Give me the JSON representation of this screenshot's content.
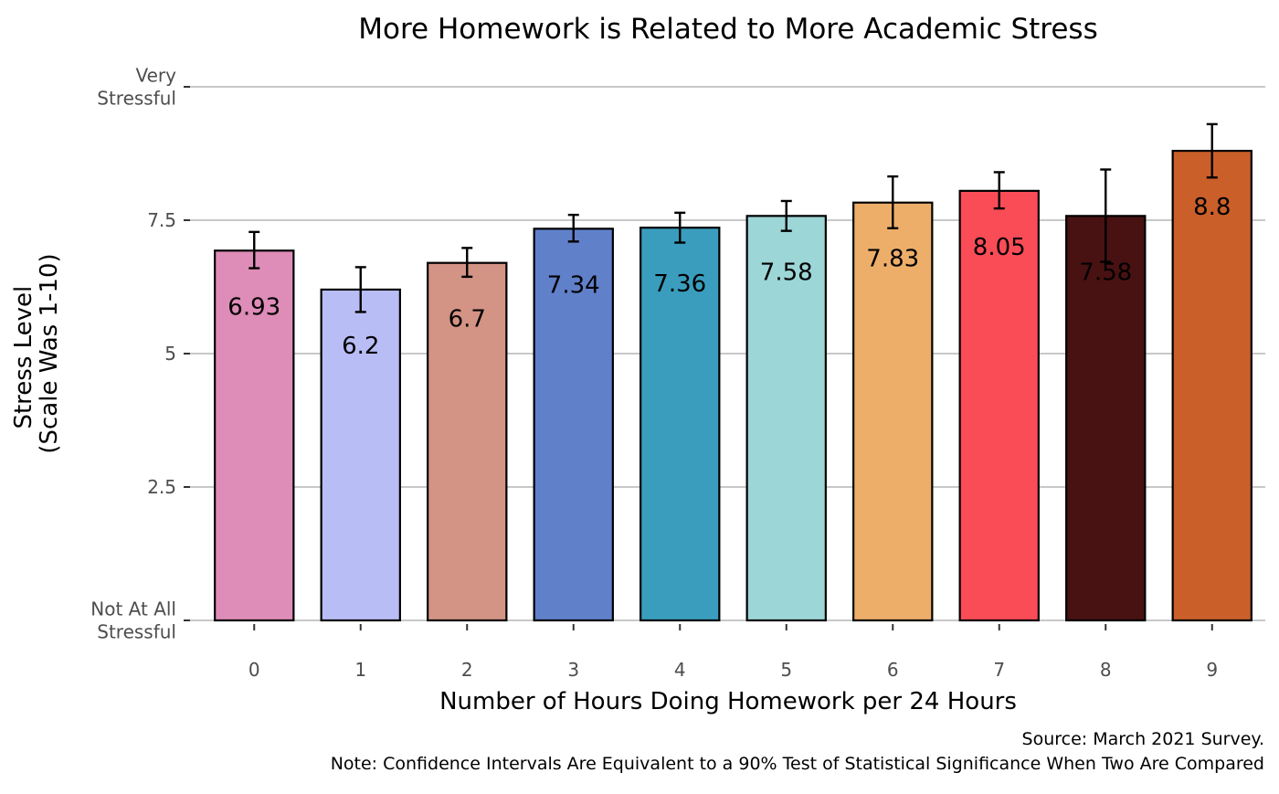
{
  "chart_data": {
    "type": "bar",
    "title": "More Homework is Related to More Academic Stress",
    "xlabel": "Number of Hours Doing Homework per 24 Hours",
    "ylabel_line1": "Stress Level",
    "ylabel_line2": "(Scale Was 1-10)",
    "caption_source": "Source: March 2021 Survey.",
    "caption_note": "Note: Confidence Intervals Are Equivalent to a 90% Test of Statistical Significance When Two Are Compared",
    "ylim": [
      0,
      10
    ],
    "grid": "horizontal",
    "y_ticks": [
      {
        "value": 0,
        "label_lines": [
          "Not At All",
          "Stressful"
        ]
      },
      {
        "value": 2.5,
        "label_lines": [
          "2.5"
        ]
      },
      {
        "value": 5,
        "label_lines": [
          "5"
        ]
      },
      {
        "value": 7.5,
        "label_lines": [
          "7.5"
        ]
      },
      {
        "value": 10,
        "label_lines": [
          "Very",
          "Stressful"
        ]
      }
    ],
    "categories": [
      "0",
      "1",
      "2",
      "3",
      "4",
      "5",
      "6",
      "7",
      "8",
      "9"
    ],
    "values": [
      6.93,
      6.2,
      6.7,
      7.34,
      7.36,
      7.58,
      7.83,
      8.05,
      7.58,
      8.8
    ],
    "value_labels": [
      "6.93",
      "6.2",
      "6.7",
      "7.34",
      "7.36",
      "7.58",
      "7.83",
      "8.05",
      "7.58",
      "8.8"
    ],
    "ci_low": [
      6.6,
      5.78,
      6.44,
      7.1,
      7.08,
      7.3,
      7.35,
      7.72,
      6.72,
      8.3
    ],
    "ci_high": [
      7.28,
      6.62,
      6.98,
      7.6,
      7.64,
      7.86,
      8.32,
      8.4,
      8.45,
      9.3
    ],
    "bar_colors": [
      "#DE8CB8",
      "#B8BDF5",
      "#D39385",
      "#6080CA",
      "#3A9DBE",
      "#9DD6D7",
      "#EDAE6A",
      "#F94C57",
      "#481212",
      "#CA5F2A"
    ]
  }
}
